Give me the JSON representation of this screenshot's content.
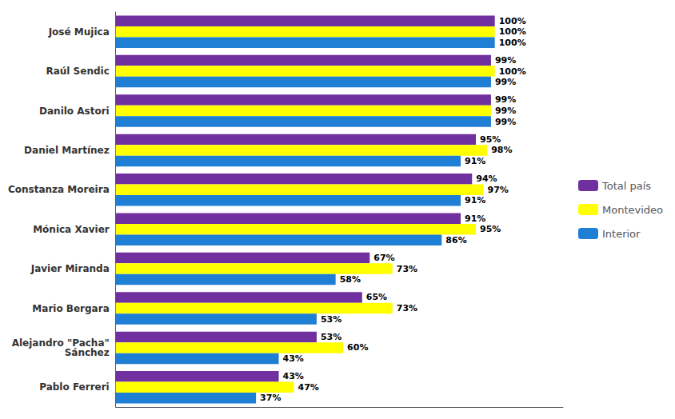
{
  "chart_data": {
    "type": "bar",
    "orientation": "horizontal",
    "categories": [
      "José Mujica",
      "Raúl Sendic",
      "Danilo Astori",
      "Daniel Martínez",
      "Constanza Moreira",
      "Mónica Xavier",
      "Javier Miranda",
      "Mario Bergara",
      "Alejandro \"Pacha\"\nSánchez",
      "Pablo Ferreri"
    ],
    "series": [
      {
        "name": "Total país",
        "color": "#7030A0",
        "values": [
          100,
          99,
          99,
          95,
          94,
          91,
          67,
          65,
          53,
          43
        ],
        "value_labels": [
          "100%",
          "99%",
          "99%",
          "95%",
          "94%",
          "91%",
          "67%",
          "65%",
          "53%",
          "43%"
        ]
      },
      {
        "name": "Montevideo",
        "color": "#FFFF00",
        "values": [
          100,
          100,
          99,
          98,
          97,
          95,
          73,
          73,
          60,
          47
        ],
        "value_labels": [
          "100%",
          "100%",
          "99%",
          "98%",
          "97%",
          "95%",
          "73%",
          "73%",
          "60%",
          "47%"
        ]
      },
      {
        "name": "Interior",
        "color": "#1F7FD4",
        "values": [
          100,
          99,
          99,
          91,
          91,
          86,
          58,
          53,
          43,
          37
        ],
        "value_labels": [
          "100%",
          "99%",
          "99%",
          "91%",
          "91%",
          "86%",
          "58%",
          "53%",
          "43%",
          "37%"
        ]
      }
    ],
    "xlim": [
      0,
      118
    ],
    "xticks": [],
    "grid": false,
    "legend": "right",
    "data_labels": true,
    "tick_labels": "y"
  }
}
